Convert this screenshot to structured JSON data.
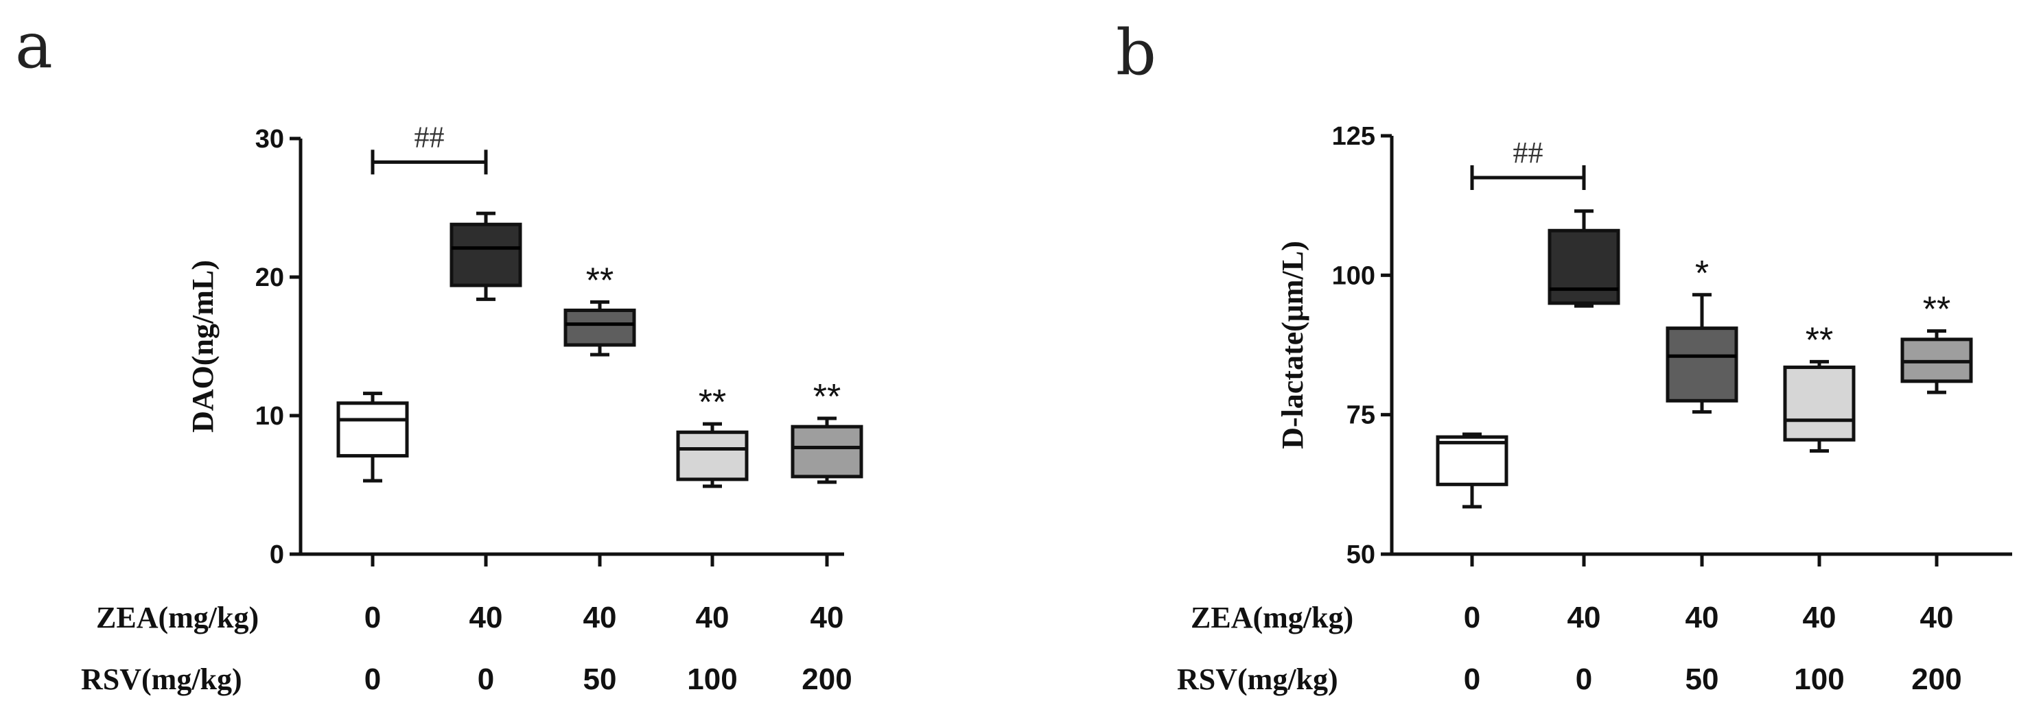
{
  "figure": {
    "row_labels": {
      "zea": "ZEA(mg/kg)",
      "rsv": "RSV(mg/kg)"
    }
  },
  "chart_data": [
    {
      "type": "box",
      "panel_label": "a",
      "title": "",
      "xlabel": "",
      "ylabel": "DAO(ng/mL)",
      "ylim": [
        0,
        30
      ],
      "yticks": [
        0,
        10,
        20,
        30
      ],
      "categories": [
        "0/0",
        "40/0",
        "40/50",
        "40/100",
        "40/200"
      ],
      "zea": [
        "0",
        "40",
        "40",
        "40",
        "40"
      ],
      "rsv": [
        "0",
        "0",
        "50",
        "100",
        "200"
      ],
      "boxes": [
        {
          "min": 5.3,
          "q1": 7.1,
          "median": 9.7,
          "q3": 10.9,
          "max": 11.6,
          "fill": "#ffffff",
          "sig": ""
        },
        {
          "min": 18.4,
          "q1": 19.4,
          "median": 22.1,
          "q3": 23.8,
          "max": 24.6,
          "fill": "#2e2e2e",
          "sig": ""
        },
        {
          "min": 14.4,
          "q1": 15.1,
          "median": 16.6,
          "q3": 17.6,
          "max": 18.2,
          "fill": "#5e5e5e",
          "sig": "**"
        },
        {
          "min": 4.9,
          "q1": 5.4,
          "median": 7.6,
          "q3": 8.8,
          "max": 9.4,
          "fill": "#d6d6d6",
          "sig": "**"
        },
        {
          "min": 5.2,
          "q1": 5.6,
          "median": 7.7,
          "q3": 9.2,
          "max": 9.8,
          "fill": "#9e9e9e",
          "sig": "**"
        }
      ],
      "bracket": {
        "from": 0,
        "to": 1,
        "level": 28.3,
        "label": "##"
      }
    },
    {
      "type": "box",
      "panel_label": "b",
      "title": "",
      "xlabel": "",
      "ylabel": "D-lactate(μm/L)",
      "ylim": [
        50,
        125
      ],
      "yticks": [
        50,
        75,
        100,
        125
      ],
      "categories": [
        "0/0",
        "40/0",
        "40/50",
        "40/100",
        "40/200"
      ],
      "zea": [
        "0",
        "40",
        "40",
        "40",
        "40"
      ],
      "rsv": [
        "0",
        "0",
        "50",
        "100",
        "200"
      ],
      "boxes": [
        {
          "min": 58.5,
          "q1": 62.5,
          "median": 70,
          "q3": 71,
          "max": 71.5,
          "fill": "#ffffff",
          "sig": ""
        },
        {
          "min": 94.5,
          "q1": 95,
          "median": 97.5,
          "q3": 108,
          "max": 111.5,
          "fill": "#2e2e2e",
          "sig": ""
        },
        {
          "min": 75.5,
          "q1": 77.5,
          "median": 85.5,
          "q3": 90.5,
          "max": 96.5,
          "fill": "#5e5e5e",
          "sig": "*"
        },
        {
          "min": 68.5,
          "q1": 70.5,
          "median": 74,
          "q3": 83.5,
          "max": 84.5,
          "fill": "#d6d6d6",
          "sig": "**"
        },
        {
          "min": 79,
          "q1": 81,
          "median": 84.5,
          "q3": 88.5,
          "max": 90,
          "fill": "#9e9e9e",
          "sig": "**"
        }
      ],
      "bracket": {
        "from": 0,
        "to": 1,
        "level": 117.5,
        "label": "##"
      }
    }
  ]
}
